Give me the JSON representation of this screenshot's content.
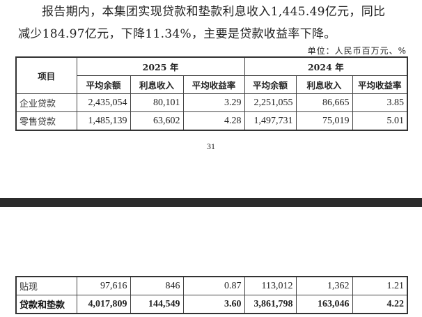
{
  "paragraph": {
    "line1": "报告期内，本集团实现贷款和垫款利息收入1,445.49亿元，同比",
    "line2": "减少184.97亿元，下降11.34%，主要是贷款收益率下降。"
  },
  "unit": "单位：人民币百万元、%",
  "table": {
    "item_header": "项目",
    "years": [
      "2025 年",
      "2024 年"
    ],
    "subheaders": [
      "平均余额",
      "利息收入",
      "平均收益率",
      "平均余额",
      "利息收入",
      "平均收益率"
    ],
    "rows": [
      {
        "label": "企业贷款",
        "values": [
          "2,435,054",
          "80,101",
          "3.29",
          "2,251,055",
          "86,665",
          "3.85"
        ]
      },
      {
        "label": "零售贷款",
        "values": [
          "1,485,139",
          "63,602",
          "4.28",
          "1,497,731",
          "75,019",
          "5.01"
        ]
      },
      {
        "label": "贴现",
        "values": [
          "97,616",
          "846",
          "0.87",
          "113,012",
          "1,362",
          "1.21"
        ]
      },
      {
        "label": "贷款和垫款",
        "values": [
          "4,017,809",
          "144,549",
          "3.60",
          "3,861,798",
          "163,046",
          "4.22"
        ]
      }
    ]
  },
  "page_number": "31"
}
